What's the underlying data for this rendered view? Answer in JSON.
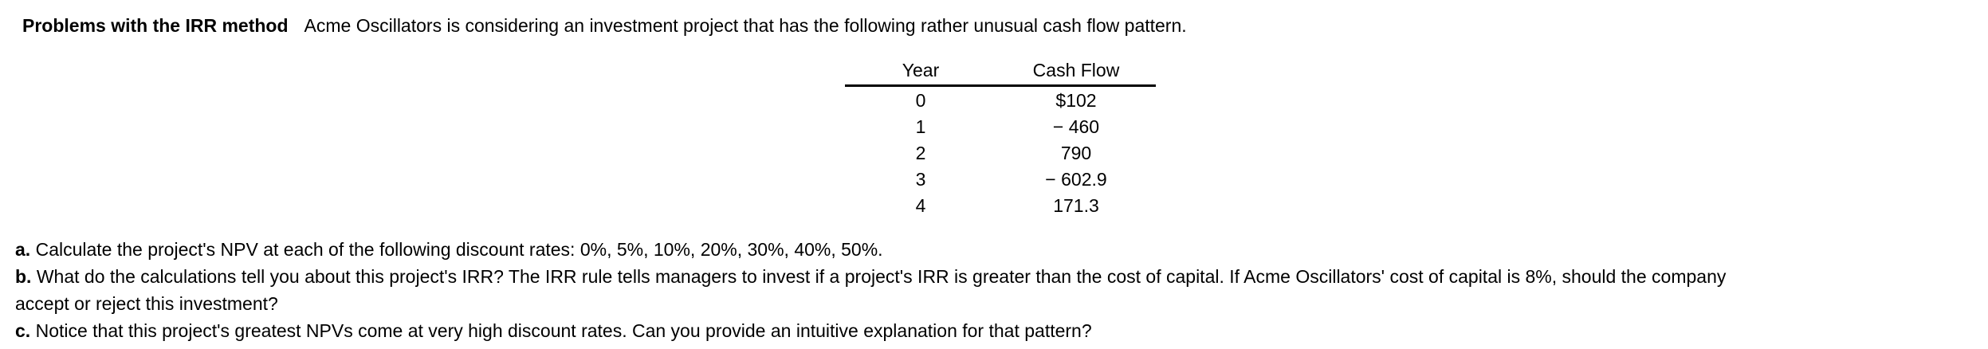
{
  "page": {
    "background": "#ffffff",
    "text_color": "#000000"
  },
  "problem": {
    "title": "Problems with the IRR method",
    "intro": "Acme Oscillators is considering an investment project that has the following rather unusual cash flow pattern.",
    "table": {
      "headers": [
        "Year",
        "Cash Flow"
      ],
      "rows": [
        {
          "year": "0",
          "cash_flow": "$102"
        },
        {
          "year": "1",
          "cash_flow": "− 460"
        },
        {
          "year": "2",
          "cash_flow": "790"
        },
        {
          "year": "3",
          "cash_flow": "− 602.9"
        },
        {
          "year": "4",
          "cash_flow": "171.3"
        }
      ]
    },
    "questions": [
      {
        "label": "a.",
        "lines": [
          "Calculate the project's NPV at each of the following discount rates: 0%, 5%, 10%, 20%, 30%, 40%, 50%."
        ]
      },
      {
        "label": "b.",
        "lines": [
          "What do the calculations tell you about this project's IRR? The IRR rule tells managers to invest if a project's IRR is greater than the cost of capital. If Acme Oscillators' cost of capital is 8%, should the company",
          "accept or reject this investment?"
        ]
      },
      {
        "label": "c.",
        "lines": [
          "Notice that this project's greatest NPVs come at very high discount rates. Can you provide an intuitive explanation for that pattern?"
        ]
      }
    ]
  }
}
